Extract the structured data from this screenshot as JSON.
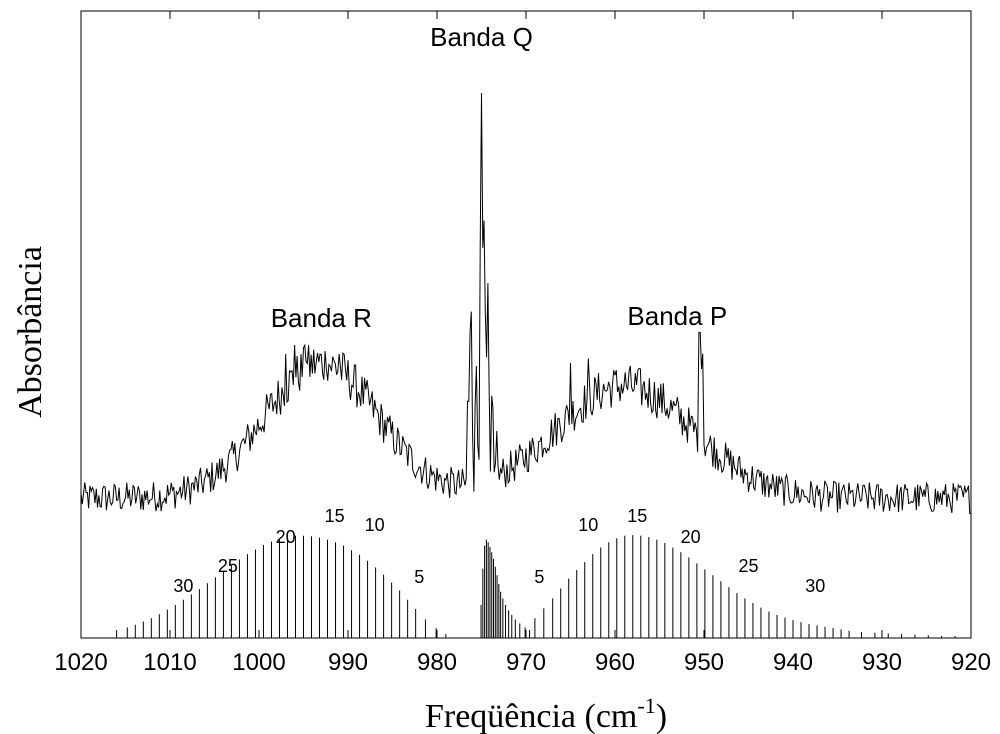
{
  "chart_data": {
    "type": "line",
    "xlabel": "Freqüência (cm",
    "xlabel_sup": "-1",
    "xlabel_close": ")",
    "ylabel": "Absorbância",
    "xlim": [
      1020,
      920
    ],
    "x_reversed": true,
    "x_ticks": [
      "1020",
      "1010",
      "1000",
      "990",
      "980",
      "970",
      "960",
      "950",
      "940",
      "930",
      "920"
    ],
    "y_ticks_labeled": false,
    "grid": false,
    "annotations": [
      {
        "text": "Banda Q",
        "x": 975.0
      },
      {
        "text": "Banda R",
        "x": 993.0
      },
      {
        "text": "Banda P",
        "x": 953.0
      }
    ],
    "rotational_labels": [
      {
        "text": "30",
        "x": 1008.5
      },
      {
        "text": "25",
        "x": 1003.5
      },
      {
        "text": "20",
        "x": 997.0
      },
      {
        "text": "15",
        "x": 991.5
      },
      {
        "text": "10",
        "x": 987.0
      },
      {
        "text": "5",
        "x": 982.0
      },
      {
        "text": "5",
        "x": 968.5
      },
      {
        "text": "10",
        "x": 963.0
      },
      {
        "text": "15",
        "x": 957.5
      },
      {
        "text": "20",
        "x": 951.5
      },
      {
        "text": "25",
        "x": 945.0
      },
      {
        "text": "30",
        "x": 937.5
      }
    ],
    "series": [
      {
        "kind": "experimental_spectrum",
        "x_range": [
          1020,
          920
        ],
        "baseline": 0.1,
        "noise": 0.035,
        "envelopes": [
          {
            "center": 993.0,
            "height": 0.3,
            "width": 9.0
          },
          {
            "center": 959.0,
            "height": 0.25,
            "width": 11.0
          }
        ],
        "peaks": [
          {
            "x": 975.0,
            "y": 1.0
          },
          {
            "x": 974.7,
            "y": 0.72
          },
          {
            "x": 974.3,
            "y": 0.58
          },
          {
            "x": 976.2,
            "y": 0.55
          },
          {
            "x": 976.5,
            "y": 0.35
          },
          {
            "x": 975.6,
            "y": 0.4
          },
          {
            "x": 973.8,
            "y": 0.35
          },
          {
            "x": 973.3,
            "y": 0.25
          },
          {
            "x": 994.8,
            "y": 0.47
          },
          {
            "x": 992.5,
            "y": 0.43
          },
          {
            "x": 997.0,
            "y": 0.42
          },
          {
            "x": 996.0,
            "y": 0.44
          },
          {
            "x": 991.0,
            "y": 0.42
          },
          {
            "x": 963.0,
            "y": 0.41
          },
          {
            "x": 965.0,
            "y": 0.4
          },
          {
            "x": 960.2,
            "y": 0.38
          },
          {
            "x": 950.5,
            "y": 0.52
          },
          {
            "x": 950.2,
            "y": 0.45
          }
        ]
      },
      {
        "kind": "simulated_stick_spectrum",
        "line_x": [
          1016.0,
          1014.8,
          1013.9,
          1013.0,
          1012.1,
          1011.2,
          1010.3,
          1009.4,
          1008.5,
          1007.6,
          1006.7,
          1005.8,
          1004.9,
          1004.0,
          1003.1,
          1002.2,
          1001.3,
          1000.4,
          999.5,
          998.6,
          997.7,
          996.8,
          995.9,
          995.0,
          994.1,
          993.2,
          992.3,
          991.4,
          990.5,
          989.6,
          988.7,
          987.8,
          986.9,
          986.0,
          985.1,
          984.2,
          983.3,
          982.4,
          981.3,
          980.1,
          979.0,
          975.05,
          974.85,
          974.65,
          974.45,
          974.25,
          974.05,
          973.85,
          973.65,
          973.45,
          973.25,
          973.05,
          972.85,
          972.6,
          972.3,
          971.95,
          971.6,
          971.2,
          970.7,
          970.1,
          969.6,
          969.0,
          968.0,
          967.0,
          966.1,
          965.2,
          964.3,
          963.4,
          962.5,
          961.6,
          960.7,
          959.8,
          958.9,
          958.0,
          957.1,
          956.2,
          955.3,
          954.4,
          953.5,
          952.6,
          951.7,
          950.8,
          949.9,
          949.0,
          948.1,
          947.2,
          946.3,
          945.4,
          944.5,
          943.6,
          942.7,
          941.8,
          940.9,
          940.0,
          939.1,
          938.2,
          937.3,
          936.4,
          935.5,
          934.6,
          933.7,
          932.3,
          930.8,
          929.3,
          927.8,
          926.3,
          924.8,
          923.3,
          921.8
        ],
        "line_y": [
          0.012,
          0.016,
          0.02,
          0.025,
          0.03,
          0.036,
          0.043,
          0.05,
          0.058,
          0.066,
          0.074,
          0.083,
          0.092,
          0.101,
          0.11,
          0.119,
          0.127,
          0.134,
          0.141,
          0.146,
          0.15,
          0.153,
          0.155,
          0.155,
          0.154,
          0.152,
          0.149,
          0.145,
          0.14,
          0.133,
          0.126,
          0.117,
          0.107,
          0.096,
          0.084,
          0.072,
          0.058,
          0.044,
          0.028,
          0.015,
          0.006,
          0.05,
          0.105,
          0.14,
          0.149,
          0.145,
          0.138,
          0.13,
          0.12,
          0.108,
          0.095,
          0.082,
          0.07,
          0.06,
          0.05,
          0.042,
          0.035,
          0.028,
          0.022,
          0.016,
          0.012,
          0.03,
          0.045,
          0.06,
          0.075,
          0.09,
          0.103,
          0.115,
          0.127,
          0.137,
          0.145,
          0.151,
          0.155,
          0.156,
          0.155,
          0.153,
          0.149,
          0.144,
          0.137,
          0.13,
          0.122,
          0.113,
          0.104,
          0.095,
          0.086,
          0.077,
          0.068,
          0.06,
          0.053,
          0.046,
          0.04,
          0.035,
          0.031,
          0.027,
          0.024,
          0.021,
          0.019,
          0.017,
          0.015,
          0.013,
          0.011,
          0.009,
          0.008,
          0.007,
          0.006,
          0.005,
          0.004,
          0.003,
          0.003
        ]
      }
    ]
  }
}
